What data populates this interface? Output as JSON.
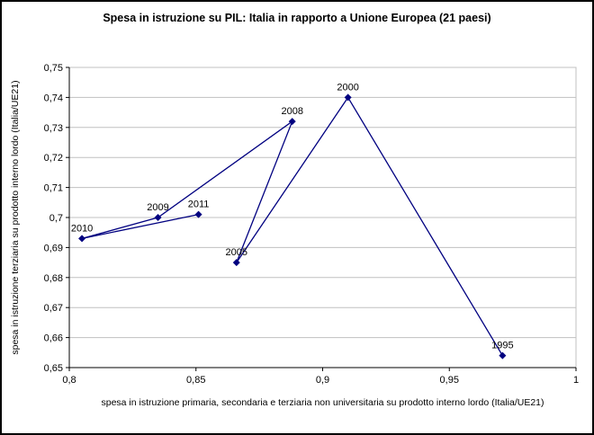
{
  "page": {
    "background": "#ffffff",
    "frame_border_color": "#000000"
  },
  "chart_data": {
    "type": "scatter",
    "subtype": "connected-scatter",
    "title": "Spesa in istruzione su PIL: Italia in rapporto a Unione Europea (21 paesi)",
    "xlabel": "spesa in istruzione primaria, secondaria e terziaria non universitaria su prodotto interno lordo (Italia/UE21)",
    "ylabel": "spesa in istruzione terziaria su prodotto interno lordo (Italia/UE21)",
    "xlim": [
      0.8,
      1.0
    ],
    "ylim": [
      0.65,
      0.75
    ],
    "grid": "horizontal",
    "legend": "none",
    "gridline_color": "#c0c0c0",
    "axis_color": "#000000",
    "x_ticks": [
      {
        "value": 0.8,
        "label": "0,8"
      },
      {
        "value": 0.85,
        "label": "0,85"
      },
      {
        "value": 0.9,
        "label": "0,9"
      },
      {
        "value": 0.95,
        "label": "0,95"
      },
      {
        "value": 1.0,
        "label": "1"
      }
    ],
    "y_ticks": [
      {
        "value": 0.65,
        "label": "0,65"
      },
      {
        "value": 0.66,
        "label": "0,66"
      },
      {
        "value": 0.67,
        "label": "0,67"
      },
      {
        "value": 0.68,
        "label": "0,68"
      },
      {
        "value": 0.69,
        "label": "0,69"
      },
      {
        "value": 0.7,
        "label": "0,7"
      },
      {
        "value": 0.71,
        "label": "0,71"
      },
      {
        "value": 0.72,
        "label": "0,72"
      },
      {
        "value": 0.73,
        "label": "0,73"
      },
      {
        "value": 0.74,
        "label": "0,74"
      },
      {
        "value": 0.75,
        "label": "0,75"
      }
    ],
    "series": [
      {
        "name": "Italia/UE21",
        "marker": "diamond",
        "color": "#000080",
        "points": [
          {
            "label": "1995",
            "x": 0.971,
            "y": 0.654
          },
          {
            "label": "2000",
            "x": 0.91,
            "y": 0.74
          },
          {
            "label": "2005",
            "x": 0.866,
            "y": 0.685
          },
          {
            "label": "2008",
            "x": 0.888,
            "y": 0.732
          },
          {
            "label": "2009",
            "x": 0.835,
            "y": 0.7
          },
          {
            "label": "2010",
            "x": 0.805,
            "y": 0.693
          },
          {
            "label": "2011",
            "x": 0.851,
            "y": 0.701
          }
        ]
      }
    ]
  }
}
